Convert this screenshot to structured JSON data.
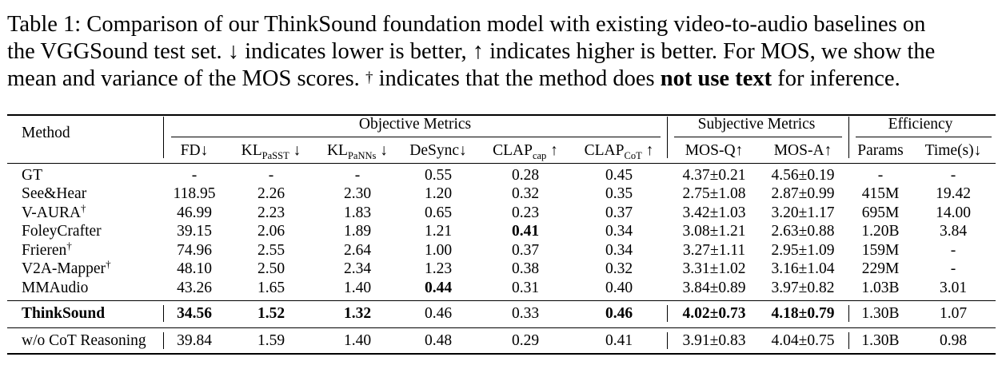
{
  "caption": {
    "line1": "Table 1: Comparison of our ThinkSound foundation model with existing video-to-audio baselines on",
    "line2": "the VGGSound test set. ↓ indicates lower is better, ↑ indicates higher is better. For MOS, we show the",
    "line3_pre": "mean and variance of the MOS scores. ",
    "dagger": "†",
    "line3_mid": " indicates that the method does ",
    "line3_bold": "not use text",
    "line3_post": " for inference."
  },
  "groups": {
    "method": "Method",
    "objective": "Objective Metrics",
    "subjective": "Subjective Metrics",
    "efficiency": "Efficiency"
  },
  "columns": [
    {
      "base": "FD",
      "sub": "",
      "arrow": "↓"
    },
    {
      "base": "KL",
      "sub": "PaSST",
      "arrow": " ↓"
    },
    {
      "base": "KL",
      "sub": "PaNNs",
      "arrow": " ↓"
    },
    {
      "base": "DeSync",
      "sub": "",
      "arrow": "↓"
    },
    {
      "base": "CLAP",
      "sub": "cap",
      "arrow": " ↑"
    },
    {
      "base": "CLAP",
      "sub": "CoT",
      "arrow": " ↑"
    },
    {
      "base": "MOS-Q",
      "sub": "",
      "arrow": "↑"
    },
    {
      "base": "MOS-A",
      "sub": "",
      "arrow": "↑"
    },
    {
      "base": "Params",
      "sub": "",
      "arrow": ""
    },
    {
      "base": "Time(s)",
      "sub": "",
      "arrow": "↓"
    }
  ],
  "rows": [
    {
      "method": "GT",
      "dagger": "",
      "values": [
        "-",
        "-",
        "-",
        "0.55",
        "0.28",
        "0.45",
        "4.37±0.21",
        "4.56±0.19",
        "-",
        "-"
      ],
      "bold": []
    },
    {
      "method": "See&Hear",
      "dagger": "",
      "values": [
        "118.95",
        "2.26",
        "2.30",
        "1.20",
        "0.32",
        "0.35",
        "2.75±1.08",
        "2.87±0.99",
        "415M",
        "19.42"
      ],
      "bold": []
    },
    {
      "method": "V-AURA",
      "dagger": "†",
      "values": [
        "46.99",
        "2.23",
        "1.83",
        "0.65",
        "0.23",
        "0.37",
        "3.42±1.03",
        "3.20±1.17",
        "695M",
        "14.00"
      ],
      "bold": []
    },
    {
      "method": "FoleyCrafter",
      "dagger": "",
      "values": [
        "39.15",
        "2.06",
        "1.89",
        "1.21",
        "0.41",
        "0.34",
        "3.08±1.21",
        "2.63±0.88",
        "1.20B",
        "3.84"
      ],
      "bold": [
        4
      ]
    },
    {
      "method": "Frieren",
      "dagger": "†",
      "values": [
        "74.96",
        "2.55",
        "2.64",
        "1.00",
        "0.37",
        "0.34",
        "3.27±1.11",
        "2.95±1.09",
        "159M",
        "-"
      ],
      "bold": []
    },
    {
      "method": "V2A-Mapper",
      "dagger": "†",
      "values": [
        "48.10",
        "2.50",
        "2.34",
        "1.23",
        "0.38",
        "0.32",
        "3.31±1.02",
        "3.16±1.04",
        "229M",
        "-"
      ],
      "bold": []
    },
    {
      "method": "MMAudio",
      "dagger": "",
      "values": [
        "43.26",
        "1.65",
        "1.40",
        "0.44",
        "0.31",
        "0.40",
        "3.84±0.89",
        "3.97±0.82",
        "1.03B",
        "3.01"
      ],
      "bold": [
        3
      ]
    },
    {
      "method": "ThinkSound",
      "dagger": "",
      "values": [
        "34.56",
        "1.52",
        "1.32",
        "0.46",
        "0.33",
        "0.46",
        "4.02±0.73",
        "4.18±0.79",
        "1.30B",
        "1.07"
      ],
      "bold": [
        "method",
        0,
        1,
        2,
        5,
        6,
        7
      ]
    },
    {
      "method": "w/o CoT Reasoning",
      "dagger": "",
      "values": [
        "39.84",
        "1.59",
        "1.40",
        "0.48",
        "0.29",
        "0.41",
        "3.91±0.83",
        "4.04±0.75",
        "1.30B",
        "0.98"
      ],
      "bold": []
    }
  ]
}
